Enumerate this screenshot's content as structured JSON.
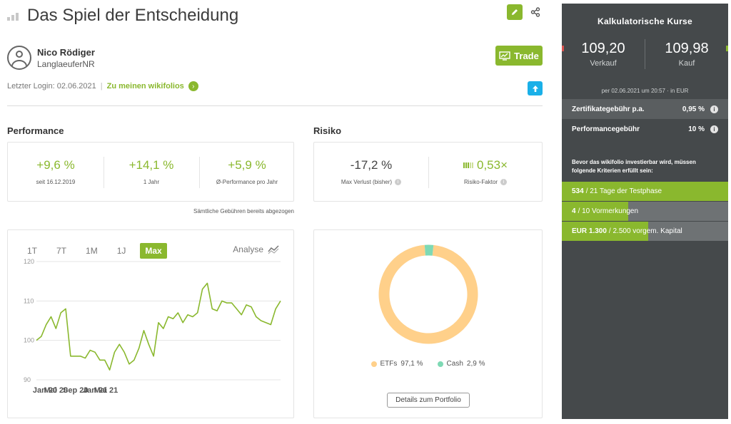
{
  "header": {
    "title": "Das Spiel der Entscheidung",
    "edit_icon": "pencil-icon",
    "share_icon": "share-icon"
  },
  "author": {
    "name": "Nico Rödiger",
    "nickname": "LanglaeuferNR"
  },
  "trade_button": {
    "label": "Trade",
    "icon": "trade-chart-icon"
  },
  "login": {
    "text": "Letzter Login: 02.06.2021",
    "separator": "|",
    "link": "Zu meinen wikifolios"
  },
  "performance": {
    "title": "Performance",
    "metrics": [
      {
        "value": "+9,6 %",
        "label": "seit 16.12.2019"
      },
      {
        "value": "+14,1 %",
        "label": "1 Jahr"
      },
      {
        "value": "+5,9 %",
        "label": "Ø-Performance pro Jahr"
      }
    ],
    "note": "Sämtliche Gebühren bereits abgezogen"
  },
  "risk": {
    "title": "Risiko",
    "max_loss": {
      "value": "-17,2 %",
      "label": "Max Verlust (bisher)"
    },
    "factor": {
      "value": "0,53×",
      "label": "Risiko-Faktor"
    }
  },
  "chart": {
    "tabs": [
      "1T",
      "7T",
      "1M",
      "1J",
      "Max"
    ],
    "active_tab": "Max",
    "analyse_label": "Analyse",
    "analyse_icon": "analyse-chart-icon"
  },
  "chart_data": {
    "type": "line",
    "title": "",
    "xlabel": "",
    "ylabel": "",
    "ylim": [
      90,
      120
    ],
    "yticks": [
      90,
      100,
      110,
      120
    ],
    "xticks": [
      "Jan 20",
      "Mai 20",
      "Sep 20",
      "Jan 21",
      "Mai 21"
    ],
    "xtick_index": [
      0,
      4,
      8,
      12,
      16
    ],
    "grid": true,
    "color": "#8ab82e",
    "series": [
      {
        "values": [
          100,
          101,
          104,
          106,
          103,
          107,
          108,
          96,
          96,
          96,
          95.5,
          97.5,
          97,
          95,
          95,
          92.5,
          97,
          99,
          97,
          94,
          95,
          98,
          102.5,
          99,
          96,
          104.5,
          103,
          106,
          105.5,
          107,
          104.5,
          106.5,
          106,
          107,
          113,
          114.5,
          108,
          107.5,
          110,
          109.5,
          109.5,
          108,
          106.5,
          109,
          108.5,
          106,
          105,
          104.5,
          104,
          108,
          110
        ]
      }
    ]
  },
  "allocation": {
    "chart_data": {
      "type": "pie",
      "categories": [
        "ETFs",
        "Cash"
      ],
      "values": [
        97.1,
        2.9
      ],
      "colors": [
        "#ffd08a",
        "#7ed9b4"
      ]
    },
    "legend": [
      {
        "label": "ETFs",
        "value": "97,1 %"
      },
      {
        "label": "Cash",
        "value": "2,9 %"
      }
    ],
    "button": "Details zum Portfolio"
  },
  "sidebar": {
    "title": "Kalkulatorische Kurse",
    "sell": {
      "value": "109,20",
      "label": "Verkauf"
    },
    "buy": {
      "value": "109,98",
      "label": "Kauf"
    },
    "asof": "per 02.06.2021 um 20:57 · in EUR",
    "fees": [
      {
        "label": "Zertifikategebühr p.a.",
        "value": "0,95 %"
      },
      {
        "label": "Performancegebühr",
        "value": "10 %"
      }
    ],
    "criteria_note": "Bevor das wikifolio investierbar wird, müssen folgende Kriterien erfüllt sein:",
    "criteria": [
      {
        "strong": "534",
        "rest": "/ 21 Tage der Testphase",
        "progress": 1.0
      },
      {
        "strong": "4",
        "rest": "/ 10 Vormerkungen",
        "progress": 0.4
      },
      {
        "strong": "EUR 1.300",
        "rest": "/ 2.500 vorgem. Kapital",
        "progress": 0.52
      }
    ]
  }
}
